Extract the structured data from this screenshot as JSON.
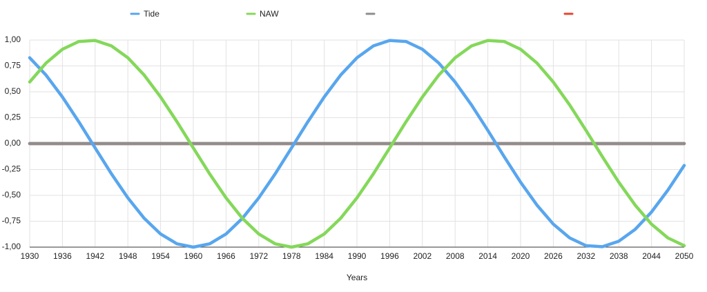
{
  "chart_data": {
    "type": "line",
    "x_label": "Years",
    "x": [
      1930,
      1933,
      1936,
      1939,
      1942,
      1945,
      1948,
      1951,
      1954,
      1957,
      1960,
      1963,
      1966,
      1969,
      1972,
      1975,
      1978,
      1981,
      1984,
      1987,
      1990,
      1993,
      1996,
      1999,
      2002,
      2005,
      2008,
      2011,
      2014,
      2017,
      2020,
      2023,
      2026,
      2029,
      2032,
      2035,
      2038,
      2041,
      2044,
      2047,
      2050
    ],
    "series": [
      {
        "name": null,
        "color": "#e8452c",
        "values": [
          0,
          0,
          0,
          0,
          0,
          0,
          0,
          0,
          0,
          0,
          0,
          0,
          0,
          0,
          0,
          0,
          0,
          0,
          0,
          0,
          0,
          0,
          0,
          0,
          0,
          0,
          0,
          0,
          0,
          0,
          0,
          0,
          0,
          0,
          0,
          0,
          0,
          0,
          0,
          0,
          0
        ]
      },
      {
        "name": null,
        "color": "#8e8e8e",
        "values": [
          0,
          0,
          0,
          0,
          0,
          0,
          0,
          0,
          0,
          0,
          0,
          0,
          0,
          0,
          0,
          0,
          0,
          0,
          0,
          0,
          0,
          0,
          0,
          0,
          0,
          0,
          0,
          0,
          0,
          0,
          0,
          0,
          0,
          0,
          0,
          0,
          0,
          0,
          0,
          0,
          0
        ]
      },
      {
        "name": "Tide",
        "color": "#58a6ee",
        "values": [
          0.829,
          0.661,
          0.45,
          0.211,
          -0.042,
          -0.293,
          -0.524,
          -0.722,
          -0.873,
          -0.968,
          -1.0,
          -0.968,
          -0.873,
          -0.722,
          -0.524,
          -0.293,
          -0.042,
          0.211,
          0.45,
          0.661,
          0.829,
          0.943,
          0.996,
          0.986,
          0.911,
          0.778,
          0.594,
          0.373,
          0.127,
          -0.127,
          -0.373,
          -0.594,
          -0.778,
          -0.911,
          -0.986,
          -0.996,
          -0.943,
          -0.829,
          -0.661,
          -0.45,
          -0.211
        ]
      },
      {
        "name": "NAW",
        "color": "#84d85a",
        "values": [
          0.595,
          0.778,
          0.911,
          0.986,
          0.996,
          0.943,
          0.829,
          0.661,
          0.45,
          0.211,
          -0.042,
          -0.293,
          -0.524,
          -0.722,
          -0.873,
          -0.968,
          -1.0,
          -0.968,
          -0.873,
          -0.722,
          -0.524,
          -0.293,
          -0.042,
          0.211,
          0.45,
          0.661,
          0.829,
          0.943,
          0.996,
          0.986,
          0.911,
          0.778,
          0.594,
          0.373,
          0.127,
          -0.127,
          -0.373,
          -0.594,
          -0.778,
          -0.911,
          -0.986
        ]
      }
    ],
    "legend_order": [
      2,
      3,
      1,
      0
    ],
    "xlim": [
      1930,
      2050
    ],
    "xticks": [
      1930,
      1936,
      1942,
      1948,
      1954,
      1960,
      1966,
      1972,
      1978,
      1984,
      1990,
      1996,
      2002,
      2008,
      2014,
      2020,
      2026,
      2032,
      2038,
      2044,
      2050
    ],
    "ylim": [
      -1,
      1
    ],
    "yticks": [
      {
        "value": -1,
        "label": "-1,00"
      },
      {
        "value": -0.75,
        "label": "-0,75"
      },
      {
        "value": -0.5,
        "label": "-0,50"
      },
      {
        "value": -0.25,
        "label": "-0,25"
      },
      {
        "value": 0,
        "label": "0,00"
      },
      {
        "value": 0.25,
        "label": "0,25"
      },
      {
        "value": 0.5,
        "label": "0,50"
      },
      {
        "value": 0.75,
        "label": "0,75"
      },
      {
        "value": 1,
        "label": "1,00"
      }
    ],
    "grid": true,
    "legend": "top"
  }
}
